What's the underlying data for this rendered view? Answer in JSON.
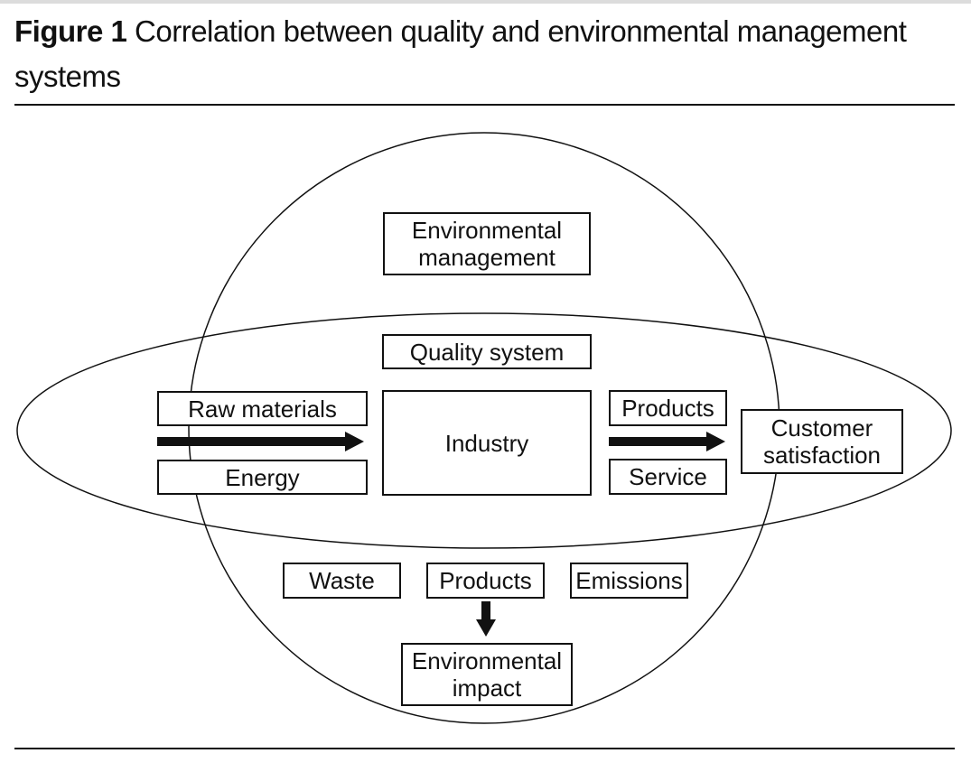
{
  "figure": {
    "label": "Figure 1",
    "title": "Correlation between quality and environmental management systems"
  },
  "nodes": {
    "environmental_management": "Environmental\nmanagement",
    "quality_system": "Quality system",
    "raw_materials": "Raw materials",
    "energy": "Energy",
    "industry": "Industry",
    "products_output": "Products",
    "service": "Service",
    "customer_satisfaction": "Customer\nsatisfaction",
    "waste": "Waste",
    "products_impact": "Products",
    "emissions": "Emissions",
    "environmental_impact": "Environmental\nimpact"
  },
  "colors": {
    "ink": "#111111",
    "background": "#ffffff",
    "top_bar": "#dcdcdc"
  }
}
